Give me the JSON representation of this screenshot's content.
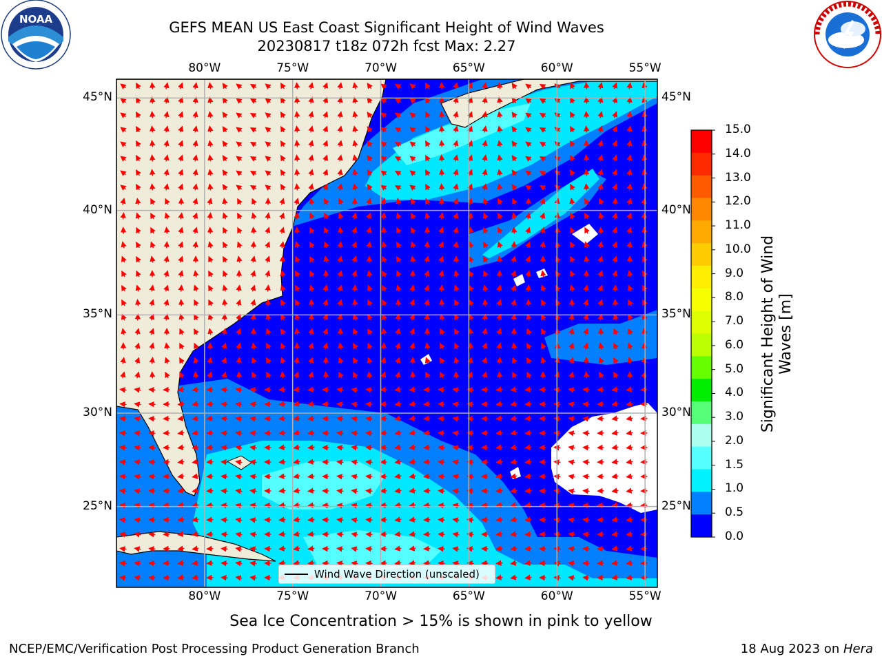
{
  "header": {
    "title_line1": "GEFS MEAN US East Coast Significant Height of Wind Waves",
    "title_line2": "20230817 t18z 072h fcst   Max: 2.27"
  },
  "logos": {
    "left": "NOAA",
    "left_ring_text": "NATIONAL OCEANIC AND ATMOSPHERIC ADMINISTRATION · U.S. DEPARTMENT OF COMMERCE",
    "right_ring_text": "NATIONAL WEATHER SERVICE"
  },
  "map": {
    "lon_labels": [
      "80°W",
      "75°W",
      "70°W",
      "65°W",
      "60°W",
      "55°W"
    ],
    "lon_values": [
      -80,
      -75,
      -70,
      -65,
      -60,
      -55
    ],
    "lat_labels": [
      "45°N",
      "40°N",
      "35°N",
      "30°N",
      "25°N"
    ],
    "lat_values": [
      45,
      40,
      35,
      30,
      25
    ],
    "extent": {
      "lon_min": -85,
      "lon_max": -54.3,
      "lat_min": 20.5,
      "lat_max": 45.8
    },
    "legend_label": "Wind Wave Direction (unscaled)",
    "colors": {
      "land": "#efedda",
      "ocean_0": "#0000ff",
      "ocean_05": "#0080ff",
      "ocean_1": "#00e8ff",
      "ocean_15": "#55ffff",
      "ocean_2": "#99ffff",
      "arrow": "#ff0000",
      "grid": "#b0b0b0"
    }
  },
  "colorbar": {
    "title_line1": "Significant Height of Wind",
    "title_line2": "Waves [m]",
    "tick_labels": [
      "15.0",
      "14.0",
      "13.0",
      "12.0",
      "11.0",
      "10.0",
      "9.0",
      "8.0",
      "7.0",
      "6.0",
      "5.0",
      "4.0",
      "3.0",
      "2.0",
      "1.5",
      "1.0",
      "0.5",
      "0.0"
    ],
    "colors_top_to_bottom": [
      "#ff0000",
      "#ff2a00",
      "#ff5a00",
      "#ff8800",
      "#ffaa00",
      "#ffcc00",
      "#ffee00",
      "#f5ff00",
      "#ddff00",
      "#bbff00",
      "#66ff00",
      "#00ee00",
      "#55ff77",
      "#aaffee",
      "#55ffff",
      "#00f2ff",
      "#0080ff",
      "#0000ff"
    ]
  },
  "caption": "Sea Ice Concentration > 15% is shown in pink to yellow",
  "footer": {
    "left": "NCEP/EMC/Verification Post Processing Product Generation Branch",
    "right_date": "18 Aug 2023 on ",
    "right_host": "Hera"
  }
}
